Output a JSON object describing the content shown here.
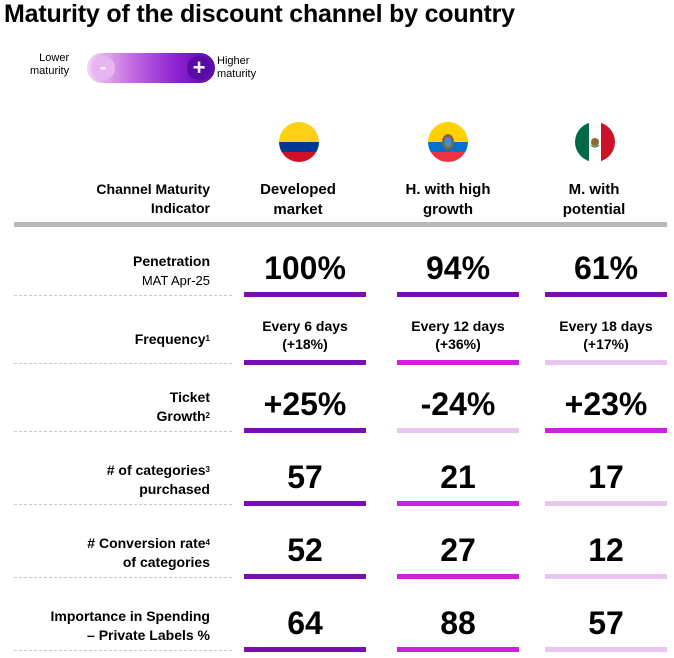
{
  "title": "Maturity of the discount channel by country",
  "legend": {
    "low_line1": "Lower",
    "low_line2": "maturity",
    "high_line1": "Higher",
    "high_line2": "maturity",
    "minus": "-",
    "plus": "+"
  },
  "header": {
    "indicator_line1": "Channel Maturity",
    "indicator_line2": "Indicator",
    "columns": [
      {
        "line1": "Developed",
        "line2": "market",
        "flag": "colombia-flag-icon"
      },
      {
        "line1": "H. with high",
        "line2": "growth",
        "flag": "ecuador-flag-icon"
      },
      {
        "line1": "M. with",
        "line2": "potential",
        "flag": "mexico-flag-icon"
      }
    ]
  },
  "colors": {
    "level_high": "#7b0db5",
    "level_mid": "#cc22e0",
    "level_low": "#e8c6f0"
  },
  "chart_data": {
    "type": "table",
    "rows": [
      {
        "label_line1": "Penetration",
        "label_line2": "MAT Apr-25",
        "label_sup": "",
        "label_sub_normal": true,
        "style": "big",
        "values": [
          "100%",
          "94%",
          "61%"
        ],
        "levels": [
          "high",
          "high",
          "high"
        ]
      },
      {
        "label_line1": "",
        "label_line2": "Frequency",
        "label_sup": "1",
        "label_sub_normal": false,
        "style": "small",
        "values": [
          "Every 6 days",
          "Every 12 days",
          "Every 18 days"
        ],
        "values2": [
          "(+18%)",
          "(+36%)",
          "(+17%)"
        ],
        "levels": [
          "high",
          "mid",
          "low"
        ]
      },
      {
        "label_line1": "Ticket",
        "label_line2": "Growth",
        "label_sup": "2",
        "label_sub_normal": false,
        "style": "big",
        "values": [
          "+25%",
          "-24%",
          "+23%"
        ],
        "levels": [
          "high",
          "low",
          "mid"
        ]
      },
      {
        "label_line1": "# of categories",
        "label_line1_sup": "3",
        "label_line2": "purchased",
        "label_sup": "",
        "label_sub_normal": false,
        "style": "big",
        "values": [
          "57",
          "21",
          "17"
        ],
        "levels": [
          "high",
          "mid",
          "low"
        ]
      },
      {
        "label_line1": "# Conversion rate",
        "label_line1_sup": "4",
        "label_line2": "of categories",
        "label_sup": "",
        "label_sub_normal": false,
        "style": "big",
        "values": [
          "52",
          "27",
          "12"
        ],
        "levels": [
          "high",
          "mid",
          "low"
        ]
      },
      {
        "label_line1": "Importance in Spending",
        "label_line2": "– Private Labels %",
        "label_sup": "",
        "label_sub_normal": false,
        "style": "big",
        "values": [
          "64",
          "88",
          "57"
        ],
        "levels": [
          "high",
          "mid",
          "low"
        ]
      }
    ]
  }
}
